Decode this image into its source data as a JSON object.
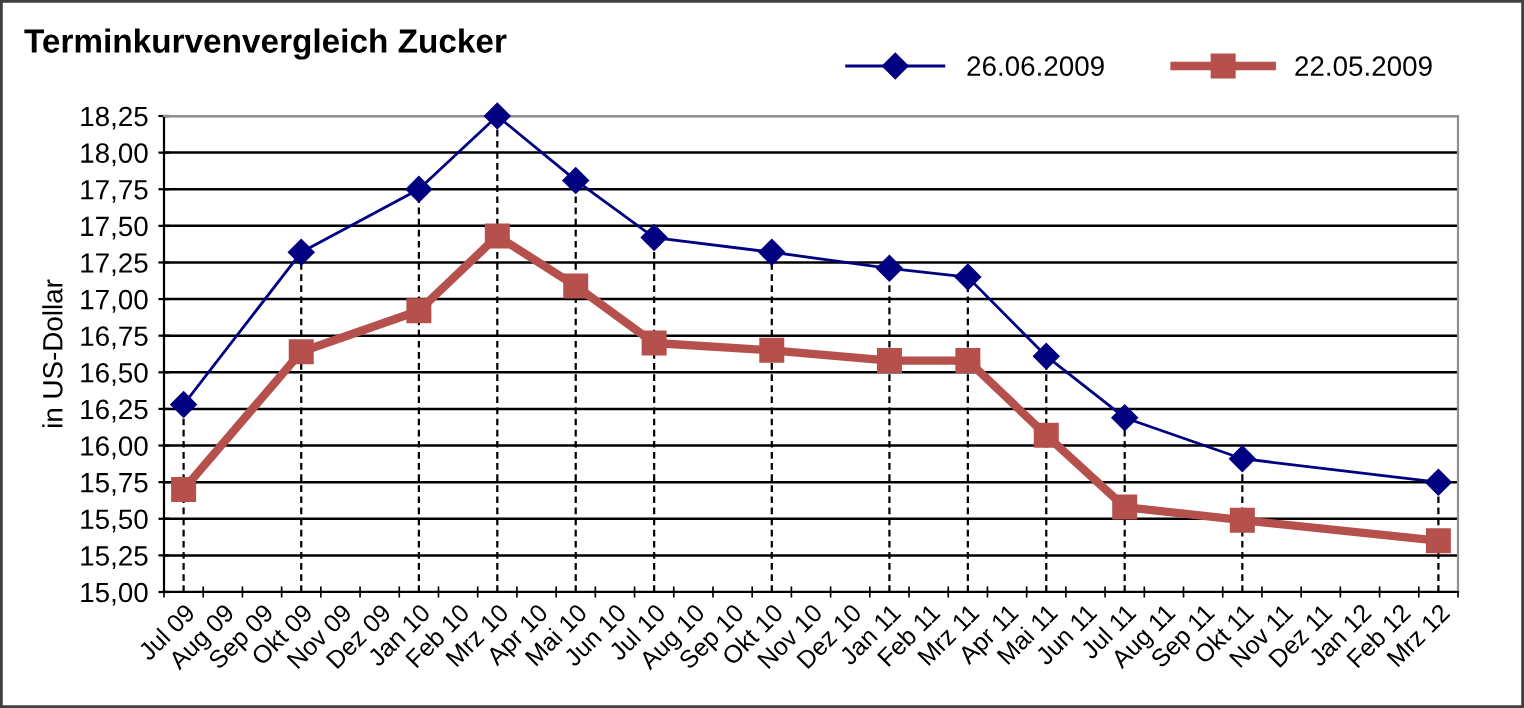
{
  "chart_data": {
    "type": "line",
    "title": "Terminkurvenvergleich Zucker",
    "ylabel": "in US-Dollar",
    "categories": [
      "Jul 09",
      "Aug 09",
      "Sep 09",
      "Okt 09",
      "Nov 09",
      "Dez 09",
      "Jan 10",
      "Feb 10",
      "Mrz 10",
      "Apr 10",
      "Mai 10",
      "Jun 10",
      "Jul 10",
      "Aug 10",
      "Sep 10",
      "Okt 10",
      "Nov 10",
      "Dez 10",
      "Jan 11",
      "Feb 11",
      "Mrz 11",
      "Apr 11",
      "Mai 11",
      "Jun 11",
      "Jul 11",
      "Aug 11",
      "Sep 11",
      "Okt 11",
      "Nov 11",
      "Dez 11",
      "Jan 12",
      "Feb 12",
      "Mrz 12"
    ],
    "series": [
      {
        "name": "26.06.2009",
        "color": "#000080",
        "marker": "diamond",
        "values": [
          16.28,
          null,
          null,
          17.32,
          null,
          null,
          17.75,
          null,
          18.25,
          null,
          17.81,
          null,
          17.42,
          null,
          null,
          17.32,
          null,
          null,
          17.21,
          null,
          17.15,
          null,
          16.61,
          null,
          16.19,
          null,
          null,
          15.91,
          null,
          null,
          null,
          null,
          15.75
        ]
      },
      {
        "name": "22.05.2009",
        "color": "#b5504d",
        "marker": "square",
        "values": [
          15.7,
          null,
          null,
          16.64,
          null,
          null,
          16.92,
          null,
          17.43,
          null,
          17.09,
          null,
          16.7,
          null,
          null,
          16.65,
          null,
          null,
          16.58,
          null,
          16.58,
          null,
          16.07,
          null,
          15.58,
          null,
          null,
          15.49,
          null,
          null,
          null,
          null,
          15.35
        ]
      }
    ],
    "ylim": [
      15.0,
      18.25
    ],
    "yticks": [
      {
        "value": 15.0,
        "label": "15,00"
      },
      {
        "value": 15.25,
        "label": "15,25"
      },
      {
        "value": 15.5,
        "label": "15,50"
      },
      {
        "value": 15.75,
        "label": "15,75"
      },
      {
        "value": 16.0,
        "label": "16,00"
      },
      {
        "value": 16.25,
        "label": "16,25"
      },
      {
        "value": 16.5,
        "label": "16,50"
      },
      {
        "value": 16.75,
        "label": "16,75"
      },
      {
        "value": 17.0,
        "label": "17,00"
      },
      {
        "value": 17.25,
        "label": "17,25"
      },
      {
        "value": 17.5,
        "label": "17,50"
      },
      {
        "value": 17.75,
        "label": "17,75"
      },
      {
        "value": 18.0,
        "label": "18,00"
      },
      {
        "value": 18.25,
        "label": "18,25"
      }
    ],
    "ref_lines": [
      {
        "axis": "x",
        "value": "Jul 09",
        "color": "#000000",
        "line_style": "dashed"
      },
      {
        "axis": "x",
        "value": "Okt 09",
        "color": "#000000",
        "line_style": "dashed"
      },
      {
        "axis": "x",
        "value": "Jan 10",
        "color": "#000000",
        "line_style": "dashed"
      },
      {
        "axis": "x",
        "value": "Mrz 10",
        "color": "#000000",
        "line_style": "dashed"
      },
      {
        "axis": "x",
        "value": "Mai 10",
        "color": "#000000",
        "line_style": "dashed"
      },
      {
        "axis": "x",
        "value": "Jul 10",
        "color": "#000000",
        "line_style": "dashed"
      },
      {
        "axis": "x",
        "value": "Okt 10",
        "color": "#000000",
        "line_style": "dashed"
      },
      {
        "axis": "x",
        "value": "Jan 11",
        "color": "#000000",
        "line_style": "dashed"
      },
      {
        "axis": "x",
        "value": "Mrz 11",
        "color": "#000000",
        "line_style": "dashed"
      },
      {
        "axis": "x",
        "value": "Mai 11",
        "color": "#000000",
        "line_style": "dashed"
      },
      {
        "axis": "x",
        "value": "Jul 11",
        "color": "#000000",
        "line_style": "dashed"
      },
      {
        "axis": "x",
        "value": "Okt 11",
        "color": "#000000",
        "line_style": "dashed"
      },
      {
        "axis": "x",
        "value": "Mrz 12",
        "color": "#000000",
        "line_style": "dashed"
      }
    ],
    "grid": "y",
    "legend": "top right",
    "line_style": "solid"
  }
}
